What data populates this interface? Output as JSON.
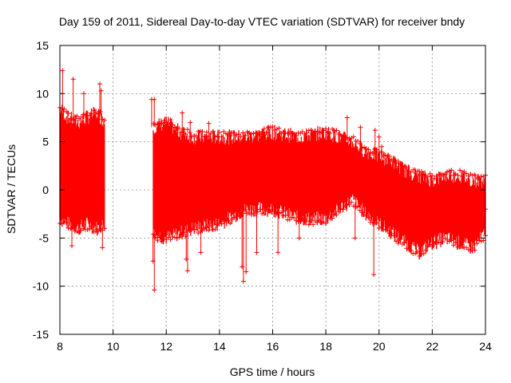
{
  "chart_data": {
    "type": "scatter",
    "title": "Day 159 of 2011, Sidereal Day-to-day VTEC variation (SDTVAR) for receiver bndy",
    "xlabel": "GPS time / hours",
    "ylabel": "SDTVAR / TECUs",
    "xlim": [
      8,
      24
    ],
    "ylim": [
      -15,
      15
    ],
    "xticks": [
      8,
      10,
      12,
      14,
      16,
      18,
      20,
      22,
      24
    ],
    "yticks": [
      -15,
      -10,
      -5,
      0,
      5,
      10,
      15
    ],
    "grid": true,
    "marker": "+",
    "color": "#ff0000",
    "series": [
      {
        "name": "SDTVAR",
        "envelope": [
          {
            "t": 8.0,
            "lo": -3.0,
            "hi": 8.5
          },
          {
            "t": 8.3,
            "lo": -3.5,
            "hi": 7.5
          },
          {
            "t": 8.7,
            "lo": -4.0,
            "hi": 7.0
          },
          {
            "t": 9.0,
            "lo": -3.5,
            "hi": 7.5
          },
          {
            "t": 9.4,
            "lo": -4.0,
            "hi": 8.0
          },
          {
            "t": 9.7,
            "lo": -3.5,
            "hi": 7.0
          },
          {
            "t": 11.5,
            "lo": -4.5,
            "hi": 6.5
          },
          {
            "t": 12.0,
            "lo": -5.0,
            "hi": 7.0
          },
          {
            "t": 12.5,
            "lo": -4.5,
            "hi": 6.0
          },
          {
            "t": 13.0,
            "lo": -4.0,
            "hi": 5.5
          },
          {
            "t": 14.0,
            "lo": -3.5,
            "hi": 5.5
          },
          {
            "t": 15.0,
            "lo": -2.0,
            "hi": 5.5
          },
          {
            "t": 16.0,
            "lo": -2.0,
            "hi": 6.0
          },
          {
            "t": 17.0,
            "lo": -3.0,
            "hi": 5.5
          },
          {
            "t": 18.0,
            "lo": -3.0,
            "hi": 6.0
          },
          {
            "t": 18.5,
            "lo": -2.0,
            "hi": 5.5
          },
          {
            "t": 19.0,
            "lo": -1.0,
            "hi": 5.0
          },
          {
            "t": 19.5,
            "lo": -2.5,
            "hi": 4.0
          },
          {
            "t": 20.0,
            "lo": -3.5,
            "hi": 3.5
          },
          {
            "t": 20.5,
            "lo": -4.5,
            "hi": 3.0
          },
          {
            "t": 21.0,
            "lo": -5.5,
            "hi": 2.0
          },
          {
            "t": 21.5,
            "lo": -6.5,
            "hi": 1.5
          },
          {
            "t": 22.0,
            "lo": -5.5,
            "hi": 1.0
          },
          {
            "t": 22.5,
            "lo": -5.0,
            "hi": 1.5
          },
          {
            "t": 23.0,
            "lo": -5.5,
            "hi": 1.5
          },
          {
            "t": 23.5,
            "lo": -6.0,
            "hi": 1.0
          },
          {
            "t": 24.0,
            "lo": -4.5,
            "hi": 1.0
          }
        ],
        "gaps": [
          [
            9.7,
            11.5
          ]
        ],
        "outliers": [
          {
            "t": 8.1,
            "v": 12.4
          },
          {
            "t": 8.5,
            "v": 11.5
          },
          {
            "t": 8.9,
            "v": 10.0
          },
          {
            "t": 9.5,
            "v": 11.0
          },
          {
            "t": 9.55,
            "v": 10.3
          },
          {
            "t": 8.45,
            "v": -5.8
          },
          {
            "t": 9.6,
            "v": -6.0
          },
          {
            "t": 11.45,
            "v": 9.4
          },
          {
            "t": 11.55,
            "v": 9.4
          },
          {
            "t": 11.5,
            "v": -7.4
          },
          {
            "t": 11.55,
            "v": -10.4
          },
          {
            "t": 12.6,
            "v": 8.0
          },
          {
            "t": 12.9,
            "v": 7.0
          },
          {
            "t": 13.6,
            "v": 6.9
          },
          {
            "t": 12.75,
            "v": -7.2
          },
          {
            "t": 12.8,
            "v": -8.4
          },
          {
            "t": 13.3,
            "v": -6.5
          },
          {
            "t": 14.85,
            "v": -8.0
          },
          {
            "t": 14.9,
            "v": -9.5
          },
          {
            "t": 15.0,
            "v": -8.5
          },
          {
            "t": 15.4,
            "v": -6.5
          },
          {
            "t": 16.2,
            "v": -6.5
          },
          {
            "t": 17.0,
            "v": -5.0
          },
          {
            "t": 18.8,
            "v": 7.5
          },
          {
            "t": 19.1,
            "v": -5.0
          },
          {
            "t": 19.3,
            "v": 6.5
          },
          {
            "t": 19.8,
            "v": -8.8
          },
          {
            "t": 19.85,
            "v": 6.2
          },
          {
            "t": 20.0,
            "v": 5.5
          },
          {
            "t": 20.1,
            "v": 4.5
          },
          {
            "t": 24.0,
            "v": -2.0
          }
        ]
      }
    ]
  }
}
